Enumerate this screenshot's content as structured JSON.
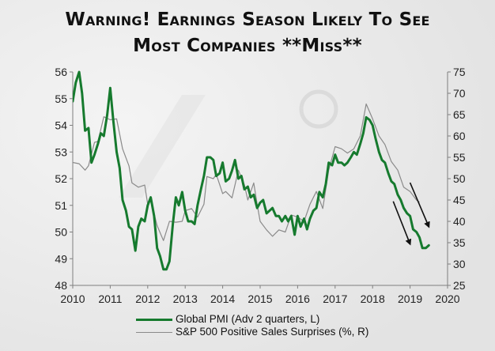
{
  "title": {
    "line1": "Warning! Earnings Season Likely To See",
    "line2": "Most Companies **Miss**"
  },
  "colors": {
    "pmi": "#167a2e",
    "sp": "#8a8a8a",
    "axis": "#7f7f7f",
    "arrow": "#111111"
  },
  "chart_data": {
    "type": "line",
    "x_ticks": [
      "2010",
      "2011",
      "2012",
      "2013",
      "2014",
      "2015",
      "2016",
      "2017",
      "2018",
      "2019",
      "2020"
    ],
    "xlim": [
      2010,
      2020
    ],
    "y_left": {
      "ticks": [
        "48",
        "49",
        "50",
        "51",
        "52",
        "53",
        "54",
        "55",
        "56"
      ],
      "lim": [
        48,
        56
      ]
    },
    "y_right": {
      "ticks": [
        "25",
        "30",
        "35",
        "40",
        "45",
        "50",
        "55",
        "60",
        "65",
        "70",
        "75"
      ],
      "lim": [
        25,
        75
      ]
    },
    "series": [
      {
        "name": "Global PMI (Adv 2 quarters, L)",
        "axis": "left",
        "points": [
          [
            2010.0,
            54.9
          ],
          [
            2010.08,
            55.6
          ],
          [
            2010.17,
            56.0
          ],
          [
            2010.25,
            55.2
          ],
          [
            2010.33,
            53.8
          ],
          [
            2010.42,
            53.9
          ],
          [
            2010.5,
            52.6
          ],
          [
            2010.58,
            52.9
          ],
          [
            2010.67,
            53.3
          ],
          [
            2010.75,
            53.7
          ],
          [
            2010.83,
            53.6
          ],
          [
            2010.92,
            54.4
          ],
          [
            2011.0,
            55.4
          ],
          [
            2011.08,
            54.2
          ],
          [
            2011.17,
            53.0
          ],
          [
            2011.25,
            52.4
          ],
          [
            2011.33,
            51.2
          ],
          [
            2011.42,
            50.8
          ],
          [
            2011.5,
            50.2
          ],
          [
            2011.58,
            50.1
          ],
          [
            2011.67,
            49.3
          ],
          [
            2011.75,
            50.2
          ],
          [
            2011.83,
            50.5
          ],
          [
            2011.92,
            50.4
          ],
          [
            2012.0,
            51.0
          ],
          [
            2012.08,
            51.3
          ],
          [
            2012.17,
            50.6
          ],
          [
            2012.25,
            49.4
          ],
          [
            2012.33,
            49.1
          ],
          [
            2012.42,
            48.6
          ],
          [
            2012.5,
            48.6
          ],
          [
            2012.58,
            48.9
          ],
          [
            2012.67,
            50.3
          ],
          [
            2012.75,
            51.3
          ],
          [
            2012.83,
            51.0
          ],
          [
            2012.92,
            51.5
          ],
          [
            2013.0,
            50.8
          ],
          [
            2013.08,
            50.4
          ],
          [
            2013.17,
            50.4
          ],
          [
            2013.25,
            50.3
          ],
          [
            2013.33,
            51.0
          ],
          [
            2013.42,
            51.6
          ],
          [
            2013.5,
            52.1
          ],
          [
            2013.58,
            52.8
          ],
          [
            2013.67,
            52.8
          ],
          [
            2013.75,
            52.7
          ],
          [
            2013.83,
            52.1
          ],
          [
            2013.92,
            52.2
          ],
          [
            2014.0,
            52.6
          ],
          [
            2014.08,
            51.9
          ],
          [
            2014.17,
            52.0
          ],
          [
            2014.25,
            52.3
          ],
          [
            2014.33,
            52.7
          ],
          [
            2014.42,
            52.0
          ],
          [
            2014.5,
            52.1
          ],
          [
            2014.58,
            51.6
          ],
          [
            2014.67,
            51.7
          ],
          [
            2014.75,
            51.3
          ],
          [
            2014.83,
            51.4
          ],
          [
            2014.92,
            50.9
          ],
          [
            2015.0,
            51.1
          ],
          [
            2015.08,
            51.2
          ],
          [
            2015.17,
            50.7
          ],
          [
            2015.25,
            50.8
          ],
          [
            2015.33,
            50.9
          ],
          [
            2015.42,
            50.6
          ],
          [
            2015.5,
            50.6
          ],
          [
            2015.58,
            50.4
          ],
          [
            2015.67,
            50.6
          ],
          [
            2015.75,
            50.4
          ],
          [
            2015.83,
            50.6
          ],
          [
            2015.92,
            49.9
          ],
          [
            2016.0,
            50.6
          ],
          [
            2016.08,
            50.2
          ],
          [
            2016.17,
            50.5
          ],
          [
            2016.25,
            50.1
          ],
          [
            2016.33,
            50.5
          ],
          [
            2016.42,
            50.8
          ],
          [
            2016.5,
            50.9
          ],
          [
            2016.58,
            51.5
          ],
          [
            2016.67,
            51.3
          ],
          [
            2016.75,
            51.8
          ],
          [
            2016.83,
            52.6
          ],
          [
            2016.92,
            52.5
          ],
          [
            2017.0,
            52.9
          ],
          [
            2017.08,
            52.6
          ],
          [
            2017.17,
            52.6
          ],
          [
            2017.25,
            52.5
          ],
          [
            2017.33,
            52.6
          ],
          [
            2017.42,
            52.8
          ],
          [
            2017.5,
            53.0
          ],
          [
            2017.58,
            52.9
          ],
          [
            2017.67,
            53.3
          ],
          [
            2017.75,
            53.7
          ],
          [
            2017.83,
            54.3
          ],
          [
            2017.92,
            54.2
          ],
          [
            2018.0,
            54.0
          ],
          [
            2018.08,
            53.5
          ],
          [
            2018.17,
            53.0
          ],
          [
            2018.25,
            52.7
          ],
          [
            2018.33,
            52.6
          ],
          [
            2018.42,
            52.2
          ],
          [
            2018.5,
            51.9
          ],
          [
            2018.58,
            51.8
          ],
          [
            2018.67,
            51.4
          ],
          [
            2018.75,
            51.2
          ],
          [
            2018.83,
            50.9
          ],
          [
            2018.92,
            50.7
          ],
          [
            2019.0,
            50.6
          ],
          [
            2019.08,
            50.1
          ],
          [
            2019.17,
            50.0
          ],
          [
            2019.25,
            49.8
          ],
          [
            2019.33,
            49.4
          ],
          [
            2019.42,
            49.4
          ],
          [
            2019.5,
            49.5
          ]
        ]
      },
      {
        "name": "S&P 500 Positive Sales Surprises (%, R)",
        "axis": "right",
        "points": [
          [
            2010.0,
            53.8
          ],
          [
            2010.17,
            53.5
          ],
          [
            2010.33,
            52.0
          ],
          [
            2010.42,
            53.0
          ],
          [
            2010.58,
            58.5
          ],
          [
            2010.67,
            58.7
          ],
          [
            2010.83,
            64.5
          ],
          [
            2011.0,
            63.8
          ],
          [
            2011.17,
            64.0
          ],
          [
            2011.33,
            57.0
          ],
          [
            2011.5,
            53.0
          ],
          [
            2011.58,
            49.0
          ],
          [
            2011.75,
            48.0
          ],
          [
            2011.92,
            48.5
          ],
          [
            2012.0,
            44.0
          ],
          [
            2012.08,
            45.0
          ],
          [
            2012.25,
            39.0
          ],
          [
            2012.42,
            35.5
          ],
          [
            2012.58,
            40.0
          ],
          [
            2012.75,
            39.8
          ],
          [
            2012.92,
            40.0
          ],
          [
            2013.0,
            42.5
          ],
          [
            2013.17,
            43.0
          ],
          [
            2013.33,
            41.0
          ],
          [
            2013.5,
            44.0
          ],
          [
            2013.58,
            50.5
          ],
          [
            2013.75,
            50.0
          ],
          [
            2013.83,
            51.0
          ],
          [
            2014.0,
            46.5
          ],
          [
            2014.08,
            47.0
          ],
          [
            2014.25,
            45.5
          ],
          [
            2014.42,
            52.0
          ],
          [
            2014.58,
            48.5
          ],
          [
            2014.67,
            45.0
          ],
          [
            2014.83,
            49.0
          ],
          [
            2014.92,
            44.0
          ],
          [
            2015.0,
            40.0
          ],
          [
            2015.17,
            38.0
          ],
          [
            2015.33,
            36.5
          ],
          [
            2015.5,
            38.0
          ],
          [
            2015.67,
            37.5
          ],
          [
            2015.83,
            41.5
          ],
          [
            2016.0,
            41.0
          ],
          [
            2016.17,
            40.0
          ],
          [
            2016.33,
            44.0
          ],
          [
            2016.5,
            47.0
          ],
          [
            2016.67,
            43.0
          ],
          [
            2016.83,
            52.0
          ],
          [
            2017.0,
            57.5
          ],
          [
            2017.17,
            57.0
          ],
          [
            2017.33,
            56.0
          ],
          [
            2017.5,
            57.0
          ],
          [
            2017.67,
            60.0
          ],
          [
            2017.83,
            67.5
          ],
          [
            2018.0,
            64.0
          ],
          [
            2018.17,
            60.0
          ],
          [
            2018.33,
            58.0
          ],
          [
            2018.5,
            54.0
          ],
          [
            2018.67,
            52.0
          ],
          [
            2018.83,
            48.0
          ],
          [
            2019.0,
            47.0
          ],
          [
            2019.17,
            45.0
          ],
          [
            2019.25,
            44.5
          ]
        ]
      }
    ],
    "annotations": [
      {
        "type": "arrow",
        "from": [
          2018.55,
          51.15
        ],
        "to": [
          2019.0,
          49.55
        ]
      },
      {
        "type": "arrow",
        "from": [
          2019.0,
          51.85
        ],
        "to": [
          2019.5,
          50.2
        ]
      }
    ],
    "legend": "bottom",
    "grid": false
  }
}
